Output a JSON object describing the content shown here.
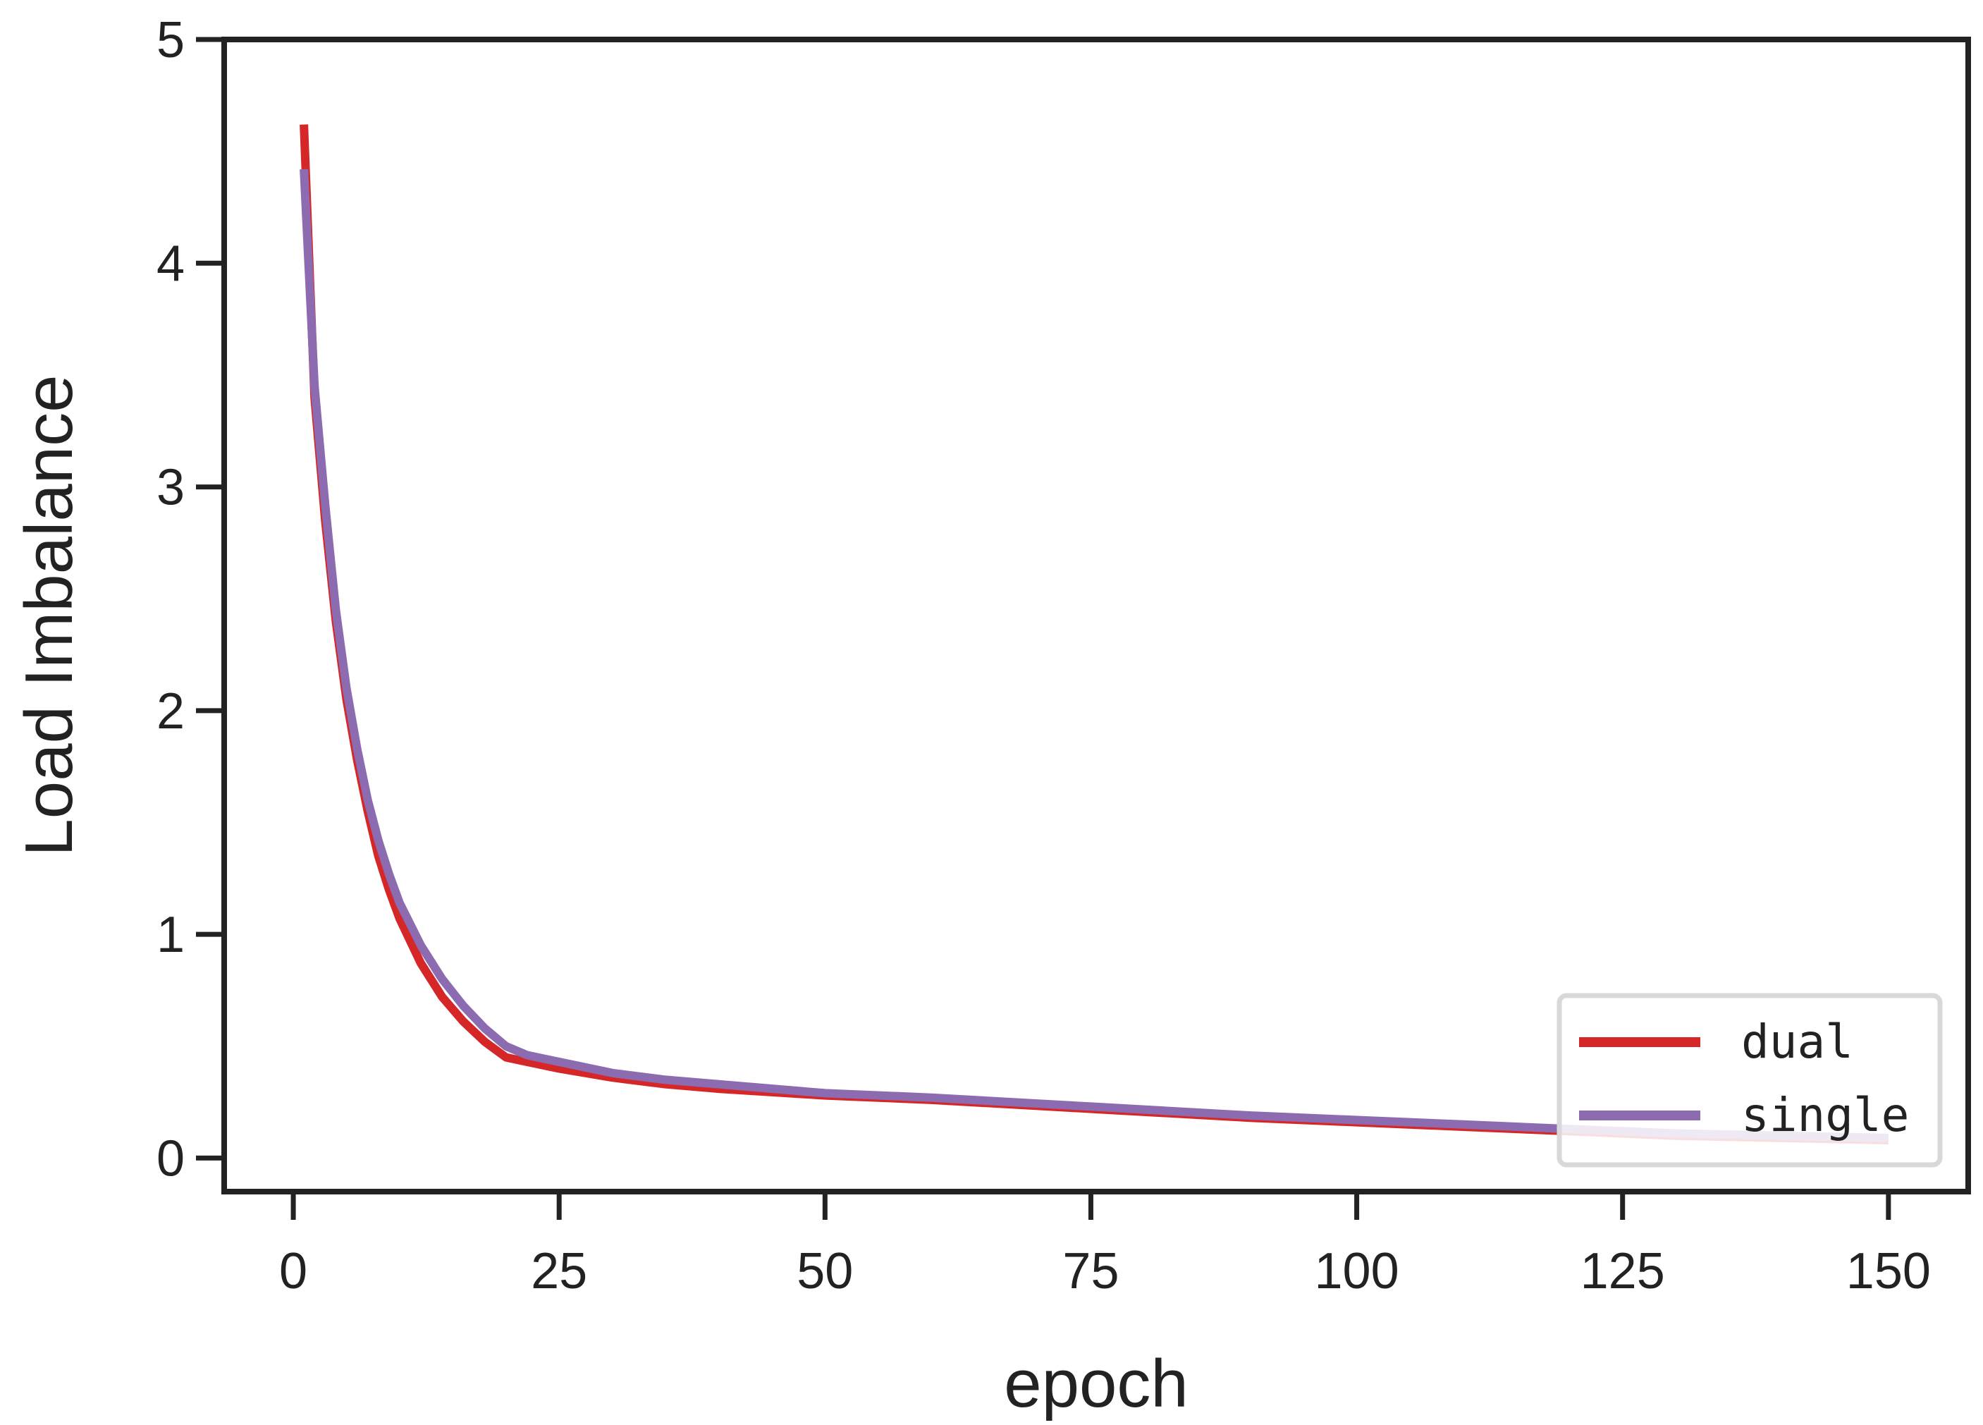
{
  "chart_data": {
    "type": "line",
    "xlabel": "epoch",
    "ylabel": "Load Imbalance",
    "xlim": [
      -6.5,
      157.5
    ],
    "ylim": [
      -0.15,
      5.0
    ],
    "xticks": [
      0,
      25,
      50,
      75,
      100,
      125,
      150
    ],
    "yticks": [
      0,
      1,
      2,
      3,
      4,
      5
    ],
    "grid": false,
    "legend_position": "bottom-right",
    "series": [
      {
        "name": "dual",
        "color": "#d62728",
        "x": [
          1,
          2,
          3,
          4,
          5,
          6,
          7,
          8,
          9,
          10,
          12,
          14,
          16,
          18,
          20,
          22,
          25,
          30,
          35,
          40,
          50,
          60,
          75,
          90,
          100,
          110,
          120,
          130,
          140,
          150
        ],
        "y": [
          4.62,
          3.4,
          2.85,
          2.4,
          2.05,
          1.78,
          1.55,
          1.35,
          1.2,
          1.07,
          0.87,
          0.72,
          0.61,
          0.52,
          0.45,
          0.43,
          0.4,
          0.36,
          0.33,
          0.31,
          0.28,
          0.26,
          0.22,
          0.18,
          0.16,
          0.14,
          0.12,
          0.1,
          0.09,
          0.08
        ]
      },
      {
        "name": "single",
        "color": "#8c6bb1",
        "x": [
          1,
          2,
          3,
          4,
          5,
          6,
          7,
          8,
          9,
          10,
          12,
          14,
          16,
          18,
          20,
          22,
          25,
          30,
          35,
          40,
          50,
          60,
          75,
          90,
          100,
          110,
          120,
          130,
          140,
          150
        ],
        "y": [
          4.42,
          3.45,
          2.92,
          2.45,
          2.1,
          1.83,
          1.6,
          1.42,
          1.27,
          1.14,
          0.95,
          0.8,
          0.68,
          0.58,
          0.5,
          0.46,
          0.43,
          0.38,
          0.35,
          0.33,
          0.29,
          0.27,
          0.23,
          0.19,
          0.17,
          0.15,
          0.13,
          0.11,
          0.1,
          0.09
        ]
      }
    ]
  }
}
